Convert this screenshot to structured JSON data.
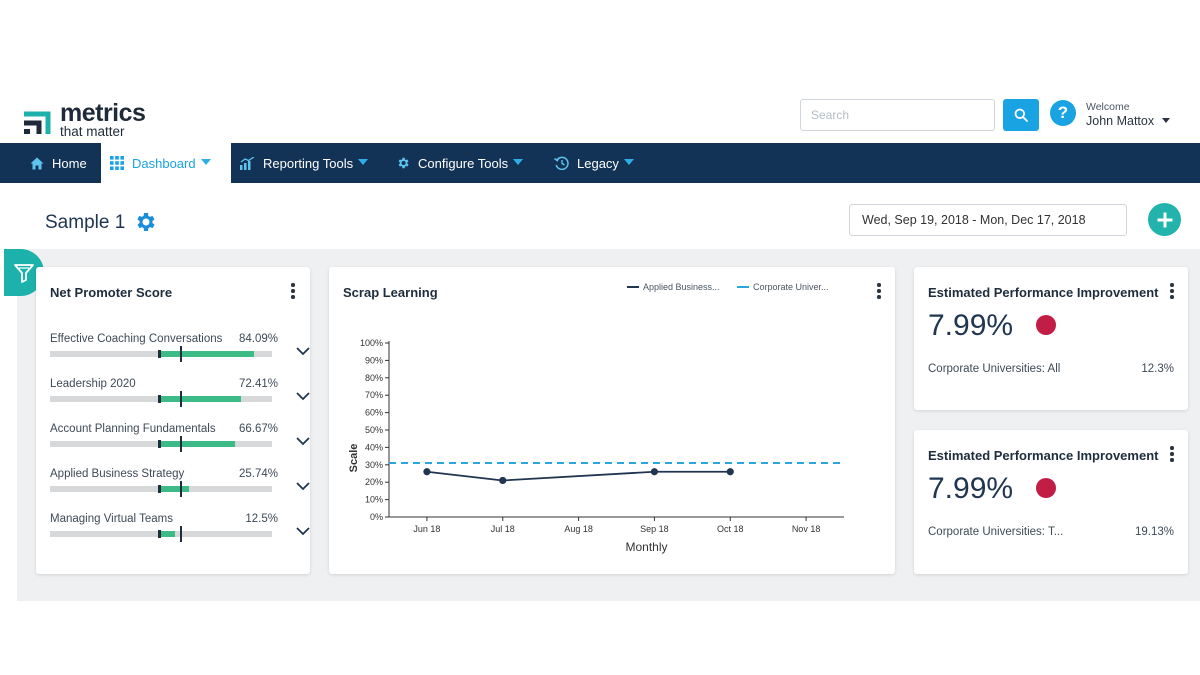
{
  "brand": {
    "name": "metrics",
    "tagline": "that matter"
  },
  "header": {
    "search_placeholder": "Search",
    "help_glyph": "?",
    "welcome_label": "Welcome",
    "user_name": "John Mattox"
  },
  "nav": {
    "items": [
      {
        "label": "Home",
        "icon": "home-icon"
      },
      {
        "label": "Dashboard",
        "icon": "grid-icon",
        "active": true
      },
      {
        "label": "Reporting Tools",
        "icon": "chart-icon"
      },
      {
        "label": "Configure Tools",
        "icon": "gear-icon"
      },
      {
        "label": "Legacy",
        "icon": "history-icon"
      }
    ]
  },
  "page": {
    "title": "Sample 1",
    "date_range": "Wed, Sep 19, 2018 - Mon, Dec 17, 2018"
  },
  "nps": {
    "title": "Net Promoter Score",
    "items": [
      {
        "label": "Effective Coaching Conversations",
        "value": "84.09%"
      },
      {
        "label": "Leadership 2020",
        "value": "72.41%"
      },
      {
        "label": "Account Planning Fundamentals",
        "value": "66.67%"
      },
      {
        "label": "Applied Business Strategy",
        "value": "25.74%"
      },
      {
        "label": "Managing Virtual Teams",
        "value": "12.5%"
      }
    ]
  },
  "scrap": {
    "title": "Scrap Learning",
    "legend": [
      "Applied Business...",
      "Corporate Univer..."
    ]
  },
  "chart_data": {
    "type": "line",
    "title": "Scrap Learning",
    "xlabel": "Monthly",
    "ylabel": "Scale",
    "categories": [
      "Jun 18",
      "Jul 18",
      "Aug 18",
      "Sep 18",
      "Oct 18",
      "Nov 18"
    ],
    "y_ticks": [
      "100%",
      "90%",
      "80%",
      "70%",
      "60%",
      "50%",
      "40%",
      "30%",
      "20%",
      "10%",
      "0%"
    ],
    "ylim": [
      0,
      100
    ],
    "series": [
      {
        "name": "Applied Business...",
        "values": [
          26,
          21,
          null,
          26,
          26,
          null
        ],
        "color": "#1f3550",
        "style": "solid"
      },
      {
        "name": "Corporate Univer...",
        "values": [
          31,
          31,
          31,
          31,
          31,
          31
        ],
        "color": "#2aa7de",
        "style": "dashed"
      }
    ]
  },
  "epi": [
    {
      "title": "Estimated Performance Improvement",
      "value": "7.99%",
      "footer_label": "Corporate Universities: All",
      "footer_value": "12.3%"
    },
    {
      "title": "Estimated Performance Improvement",
      "value": "7.99%",
      "footer_label": "Corporate Universities: T...",
      "footer_value": "19.13%"
    }
  ],
  "colors": {
    "nav_bg": "#133356",
    "accent": "#1aa3e2",
    "teal": "#22b3ac",
    "bar_green": "#3dbb86",
    "alert_red": "#c21d44"
  }
}
